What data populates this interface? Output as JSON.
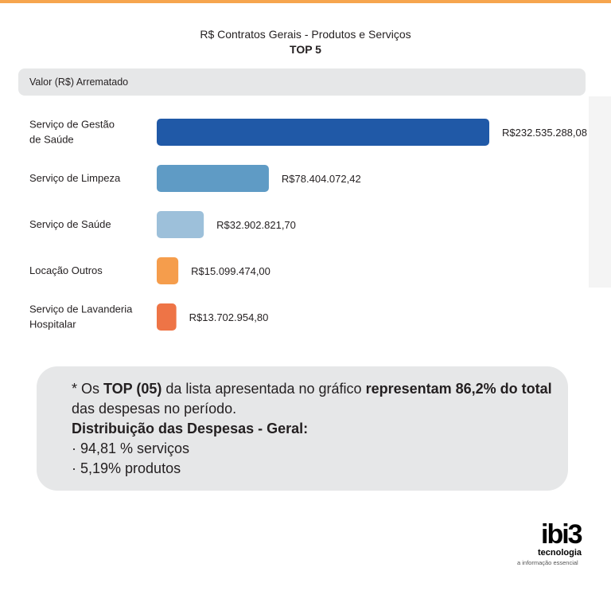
{
  "chart_data": {
    "type": "bar",
    "orientation": "horizontal",
    "title": "R$ Contratos Gerais - Produtos e Serviços",
    "subtitle": "TOP 5",
    "value_header": "Valor (R$) Arrematado",
    "categories": [
      [
        "Serviço de Gestão",
        "de Saúde"
      ],
      [
        "Serviço de Limpeza"
      ],
      [
        "Serviço de Saúde"
      ],
      [
        "Locação Outros"
      ],
      [
        "Serviço de Lavanderia",
        "Hospitalar"
      ]
    ],
    "values": [
      232535288.08,
      78404072.42,
      32902821.7,
      15099474.0,
      13702954.8
    ],
    "value_labels": [
      "R$232.535.288,08",
      "R$78.404.072,42",
      "R$32.902.821,70",
      "R$15.099.474,00",
      "R$13.702.954,80"
    ],
    "colors": [
      "#2059a7",
      "#5f9bc5",
      "#9dc0da",
      "#f59d4c",
      "#ee7446"
    ],
    "grid": false,
    "legend": "none"
  },
  "note": {
    "line1_prefix": "* Os ",
    "line1_bold1": "TOP (05)",
    "line1_mid": " da lista apresentada no gráfico ",
    "line1_bold2": "representam 86,2% do total",
    "line2": "das despesas no período.",
    "line3_bold": "Distribuição das Despesas - Geral:",
    "line4": "· 94,81 % serviços",
    "line5": "· 5,19% produtos"
  },
  "logo": {
    "mark": "ibi3",
    "word": "tecnologia",
    "tagline": "a informação essencial"
  }
}
